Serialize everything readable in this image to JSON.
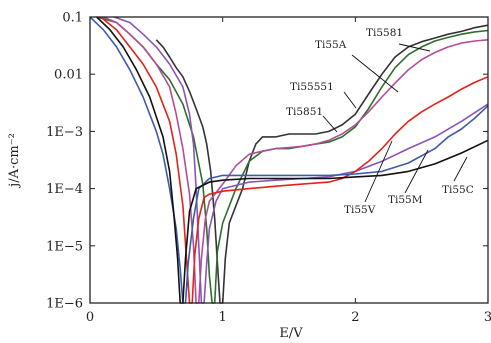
{
  "chart_data": {
    "type": "line",
    "xlabel": "E/V",
    "ylabel": "j/A·cm⁻²",
    "xlim": [
      0,
      3
    ],
    "ylim": [
      1e-06,
      0.1
    ],
    "yscale": "log",
    "grid": false,
    "x_ticks": [
      0,
      1,
      2,
      3
    ],
    "x_tick_labels": [
      "0",
      "1",
      "2",
      "3"
    ],
    "y_ticks": [
      1e-06,
      1e-05,
      0.0001,
      0.001,
      0.01,
      0.1
    ],
    "y_tick_labels": [
      "1E−6",
      "1E−5",
      "1E−4",
      "1E−3",
      "0.01",
      "0.1"
    ],
    "series": [
      {
        "name": "Ti5851",
        "color": "#333333",
        "points": [
          [
            0.5,
            0.04
          ],
          [
            0.55,
            0.03
          ],
          [
            0.6,
            0.02
          ],
          [
            0.65,
            0.013
          ],
          [
            0.7,
            0.009
          ],
          [
            0.75,
            0.005
          ],
          [
            0.8,
            0.0025
          ],
          [
            0.85,
            0.0012
          ],
          [
            0.88,
            0.0006
          ],
          [
            0.91,
            0.0002
          ],
          [
            0.94,
            3e-05
          ],
          [
            0.96,
            5e-06
          ],
          [
            0.98,
            1e-06
          ],
          [
            1.0,
            1e-06
          ],
          [
            1.02,
            6e-06
          ],
          [
            1.05,
            2.5e-05
          ],
          [
            1.1,
            5e-05
          ],
          [
            1.15,
            0.0001
          ],
          [
            1.2,
            0.0003
          ],
          [
            1.25,
            0.0006
          ],
          [
            1.3,
            0.0008
          ],
          [
            1.4,
            0.0008
          ],
          [
            1.5,
            0.0009
          ],
          [
            1.6,
            0.0009
          ],
          [
            1.7,
            0.0009
          ],
          [
            1.8,
            0.001
          ],
          [
            1.9,
            0.0013
          ],
          [
            2.0,
            0.002
          ],
          [
            2.1,
            0.0045
          ],
          [
            2.2,
            0.01
          ],
          [
            2.3,
            0.02
          ],
          [
            2.4,
            0.03
          ],
          [
            2.5,
            0.037
          ],
          [
            2.6,
            0.043
          ],
          [
            2.7,
            0.05
          ],
          [
            2.8,
            0.056
          ],
          [
            2.9,
            0.065
          ],
          [
            3.0,
            0.072
          ]
        ]
      },
      {
        "name": "Ti55551",
        "color": "#2e6e2e",
        "points": [
          [
            0.05,
            0.1
          ],
          [
            0.2,
            0.08
          ],
          [
            0.3,
            0.05
          ],
          [
            0.4,
            0.03
          ],
          [
            0.5,
            0.015
          ],
          [
            0.6,
            0.008
          ],
          [
            0.7,
            0.003
          ],
          [
            0.78,
            0.0008
          ],
          [
            0.85,
            0.00012
          ],
          [
            0.88,
            2e-05
          ],
          [
            0.9,
            3e-06
          ],
          [
            0.92,
            1e-06
          ],
          [
            0.94,
            1e-06
          ],
          [
            0.96,
            8e-06
          ],
          [
            1.0,
            2.5e-05
          ],
          [
            1.05,
            5e-05
          ],
          [
            1.1,
            0.0001
          ],
          [
            1.2,
            0.0003
          ],
          [
            1.3,
            0.00045
          ],
          [
            1.4,
            0.0005
          ],
          [
            1.5,
            0.0005
          ],
          [
            1.6,
            0.00055
          ],
          [
            1.7,
            0.0006
          ],
          [
            1.8,
            0.00065
          ],
          [
            1.9,
            0.0008
          ],
          [
            2.0,
            0.0012
          ],
          [
            2.1,
            0.0025
          ],
          [
            2.2,
            0.006
          ],
          [
            2.3,
            0.013
          ],
          [
            2.4,
            0.022
          ],
          [
            2.5,
            0.03
          ],
          [
            2.6,
            0.038
          ],
          [
            2.7,
            0.044
          ],
          [
            2.8,
            0.05
          ],
          [
            2.9,
            0.055
          ],
          [
            3.0,
            0.058
          ]
        ]
      },
      {
        "name": "Ti55A",
        "color": "#b34d9a",
        "points": [
          [
            0.1,
            0.1
          ],
          [
            0.2,
            0.08
          ],
          [
            0.3,
            0.05
          ],
          [
            0.4,
            0.03
          ],
          [
            0.5,
            0.015
          ],
          [
            0.6,
            0.006
          ],
          [
            0.65,
            0.002
          ],
          [
            0.7,
            0.0005
          ],
          [
            0.75,
            8e-05
          ],
          [
            0.78,
            1e-05
          ],
          [
            0.8,
            1e-06
          ],
          [
            0.82,
            1e-06
          ],
          [
            0.84,
            6e-06
          ],
          [
            0.87,
            3e-05
          ],
          [
            0.9,
            6e-05
          ],
          [
            1.0,
            0.00012
          ],
          [
            1.1,
            0.00025
          ],
          [
            1.2,
            0.0004
          ],
          [
            1.3,
            0.00045
          ],
          [
            1.4,
            0.0005
          ],
          [
            1.5,
            0.00052
          ],
          [
            1.6,
            0.00055
          ],
          [
            1.7,
            0.0006
          ],
          [
            1.8,
            0.0007
          ],
          [
            1.9,
            0.0009
          ],
          [
            2.0,
            0.0013
          ],
          [
            2.1,
            0.0022
          ],
          [
            2.2,
            0.004
          ],
          [
            2.3,
            0.007
          ],
          [
            2.4,
            0.012
          ],
          [
            2.5,
            0.018
          ],
          [
            2.6,
            0.024
          ],
          [
            2.7,
            0.03
          ],
          [
            2.8,
            0.035
          ],
          [
            2.9,
            0.038
          ],
          [
            3.0,
            0.04
          ]
        ]
      },
      {
        "name": "Ti558I",
        "color": "#8a55b3",
        "points": [
          [
            0.18,
            0.1
          ],
          [
            0.3,
            0.08
          ],
          [
            0.4,
            0.05
          ],
          [
            0.5,
            0.03
          ],
          [
            0.6,
            0.015
          ],
          [
            0.7,
            0.006
          ],
          [
            0.75,
            0.002
          ],
          [
            0.78,
            0.0006
          ],
          [
            0.8,
            0.0001
          ],
          [
            0.82,
            1e-05
          ],
          [
            0.84,
            1e-06
          ],
          [
            0.86,
            1e-06
          ],
          [
            0.88,
            5e-06
          ],
          [
            0.9,
            2e-05
          ],
          [
            0.95,
            6e-05
          ],
          [
            1.0,
            0.0001
          ],
          [
            1.2,
            0.00013
          ],
          [
            1.4,
            0.00014
          ],
          [
            1.6,
            0.00015
          ],
          [
            1.8,
            0.00016
          ],
          [
            1.9,
            0.00018
          ],
          [
            2.0,
            0.0002
          ],
          [
            2.2,
            0.0003
          ],
          [
            2.4,
            0.0005
          ],
          [
            2.6,
            0.0008
          ],
          [
            2.8,
            0.0015
          ],
          [
            3.0,
            0.003
          ]
        ]
      },
      {
        "name": "Ti55V",
        "color": "#e2231a",
        "points": [
          [
            0.08,
            0.1
          ],
          [
            0.2,
            0.06
          ],
          [
            0.3,
            0.03
          ],
          [
            0.4,
            0.015
          ],
          [
            0.5,
            0.006
          ],
          [
            0.6,
            0.0015
          ],
          [
            0.65,
            0.0004
          ],
          [
            0.7,
            5e-05
          ],
          [
            0.73,
            5e-06
          ],
          [
            0.75,
            1e-06
          ],
          [
            0.77,
            1e-06
          ],
          [
            0.79,
            7e-06
          ],
          [
            0.82,
            3e-05
          ],
          [
            0.86,
            7e-05
          ],
          [
            0.9,
            8e-05
          ],
          [
            1.0,
            9e-05
          ],
          [
            1.2,
            0.0001
          ],
          [
            1.4,
            0.00011
          ],
          [
            1.6,
            0.00012
          ],
          [
            1.8,
            0.00013
          ],
          [
            1.9,
            0.00015
          ],
          [
            2.0,
            0.0002
          ],
          [
            2.1,
            0.0003
          ],
          [
            2.2,
            0.0005
          ],
          [
            2.3,
            0.0009
          ],
          [
            2.4,
            0.0015
          ],
          [
            2.5,
            0.0022
          ],
          [
            2.6,
            0.003
          ],
          [
            2.7,
            0.004
          ],
          [
            2.8,
            0.0055
          ],
          [
            2.9,
            0.0072
          ],
          [
            3.0,
            0.009
          ]
        ]
      },
      {
        "name": "Ti55M",
        "color": "#3e5ba8",
        "points": [
          [
            0.0,
            0.1
          ],
          [
            0.1,
            0.06
          ],
          [
            0.2,
            0.03
          ],
          [
            0.3,
            0.012
          ],
          [
            0.4,
            0.004
          ],
          [
            0.5,
            0.001
          ],
          [
            0.55,
            0.0004
          ],
          [
            0.6,
            0.0001
          ],
          [
            0.65,
            2e-05
          ],
          [
            0.68,
            4e-06
          ],
          [
            0.7,
            1e-06
          ],
          [
            0.72,
            1e-06
          ],
          [
            0.74,
            5e-06
          ],
          [
            0.78,
            3e-05
          ],
          [
            0.82,
            0.0001
          ],
          [
            0.9,
            0.00015
          ],
          [
            1.0,
            0.00017
          ],
          [
            1.2,
            0.00017
          ],
          [
            1.4,
            0.00017
          ],
          [
            1.6,
            0.00017
          ],
          [
            1.8,
            0.00017
          ],
          [
            2.0,
            0.00018
          ],
          [
            2.2,
            0.0002
          ],
          [
            2.4,
            0.00028
          ],
          [
            2.6,
            0.0005
          ],
          [
            2.7,
            0.0008
          ],
          [
            2.8,
            0.0011
          ],
          [
            2.9,
            0.0017
          ],
          [
            3.0,
            0.0028
          ]
        ]
      },
      {
        "name": "Ti55C",
        "color": "#111111",
        "points": [
          [
            0.05,
            0.1
          ],
          [
            0.15,
            0.06
          ],
          [
            0.25,
            0.03
          ],
          [
            0.35,
            0.012
          ],
          [
            0.45,
            0.004
          ],
          [
            0.55,
            0.0008
          ],
          [
            0.6,
            0.0002
          ],
          [
            0.63,
            4e-05
          ],
          [
            0.66,
            6e-06
          ],
          [
            0.68,
            1e-06
          ],
          [
            0.7,
            1e-06
          ],
          [
            0.72,
            6e-06
          ],
          [
            0.75,
            4e-05
          ],
          [
            0.8,
            0.0001
          ],
          [
            0.9,
            0.00013
          ],
          [
            1.0,
            0.00014
          ],
          [
            1.2,
            0.00015
          ],
          [
            1.4,
            0.00015
          ],
          [
            1.6,
            0.00015
          ],
          [
            1.8,
            0.00015
          ],
          [
            2.0,
            0.00016
          ],
          [
            2.2,
            0.00017
          ],
          [
            2.4,
            0.0002
          ],
          [
            2.6,
            0.00027
          ],
          [
            2.8,
            0.00042
          ],
          [
            3.0,
            0.0007
          ]
        ]
      }
    ],
    "annotations": [
      {
        "text": "Ti5581",
        "series": "Ti558I"
      },
      {
        "text": "Ti55A",
        "series": "Ti55A"
      },
      {
        "text": "Ti55551",
        "series": "Ti55551"
      },
      {
        "text": "Ti5851",
        "series": "Ti5851"
      },
      {
        "text": "Ti55V",
        "series": "Ti55V"
      },
      {
        "text": "Ti55M",
        "series": "Ti55M"
      },
      {
        "text": "Ti55C",
        "series": "Ti55C"
      }
    ]
  }
}
